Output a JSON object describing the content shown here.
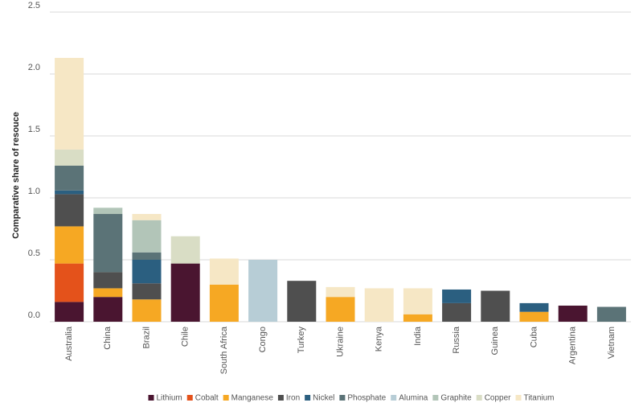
{
  "chart_data": {
    "type": "stacked-bar",
    "ylabel": "Comparative share of resouce",
    "categories": [
      "Australia",
      "China",
      "Brazil",
      "Chile",
      "South Africa",
      "Congo",
      "Turkey",
      "Ukraine",
      "Kenya",
      "India",
      "Russia",
      "Guinea",
      "Cuba",
      "Argentina",
      "Vietnam"
    ],
    "series": [
      {
        "name": "Lithium",
        "color": "#4a1530",
        "values": [
          0.16,
          0.2,
          null,
          0.47,
          null,
          null,
          null,
          null,
          null,
          null,
          null,
          null,
          null,
          0.13,
          null
        ]
      },
      {
        "name": "Cobalt",
        "color": "#e4521b",
        "values": [
          0.31,
          null,
          null,
          null,
          null,
          null,
          null,
          null,
          null,
          null,
          null,
          null,
          null,
          null,
          null
        ]
      },
      {
        "name": "Manganese",
        "color": "#f6a823",
        "values": [
          0.3,
          0.07,
          0.18,
          null,
          0.3,
          null,
          null,
          0.2,
          null,
          0.06,
          null,
          null,
          0.08,
          null,
          null
        ]
      },
      {
        "name": "Iron",
        "color": "#4f4f4f",
        "values": [
          0.26,
          0.13,
          0.13,
          null,
          null,
          null,
          0.33,
          null,
          null,
          null,
          0.15,
          0.25,
          null,
          null,
          null
        ]
      },
      {
        "name": "Nickel",
        "color": "#2b5f80",
        "values": [
          0.03,
          null,
          0.19,
          null,
          null,
          null,
          null,
          null,
          null,
          null,
          0.11,
          null,
          0.07,
          null,
          null
        ]
      },
      {
        "name": "Phosphate",
        "color": "#5b7377",
        "values": [
          0.2,
          0.47,
          0.06,
          null,
          null,
          null,
          null,
          null,
          null,
          null,
          null,
          null,
          null,
          null,
          0.12
        ]
      },
      {
        "name": "Alumina",
        "color": "#b7cdd6",
        "values": [
          null,
          null,
          null,
          null,
          null,
          0.5,
          null,
          null,
          null,
          null,
          null,
          null,
          null,
          null,
          null
        ]
      },
      {
        "name": "Graphite",
        "color": "#b2c5b8",
        "values": [
          null,
          0.05,
          0.26,
          null,
          null,
          null,
          null,
          null,
          null,
          null,
          null,
          null,
          null,
          null,
          null
        ]
      },
      {
        "name": "Copper",
        "color": "#d9ddc5",
        "values": [
          0.13,
          null,
          null,
          0.22,
          null,
          null,
          null,
          null,
          null,
          null,
          null,
          null,
          null,
          null,
          null
        ]
      },
      {
        "name": "Titanium",
        "color": "#f6e7c5",
        "values": [
          0.74,
          null,
          0.05,
          null,
          0.21,
          null,
          null,
          0.08,
          0.27,
          0.21,
          null,
          null,
          null,
          null,
          null
        ]
      }
    ],
    "ylim": [
      0,
      2.5
    ],
    "yticks": [
      {
        "value": 0,
        "label": "0.0"
      },
      0.5,
      {
        "value": 1,
        "label": "1.0"
      },
      1.5,
      {
        "value": 2,
        "label": "2.0"
      },
      2.5
    ],
    "grid": true,
    "legend": "bottom"
  }
}
